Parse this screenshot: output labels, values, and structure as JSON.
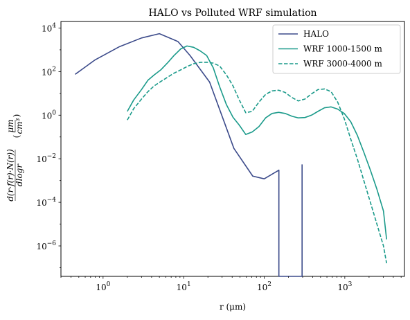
{
  "chart_data": {
    "type": "line",
    "title": "HALO vs Polluted WRF simulation",
    "xlabel": "r (μm)",
    "ylabel_parts": {
      "frac_num": "d(r·f(r)·N(r))",
      "frac_den": "dlogr",
      "unit_num": "μm",
      "unit_den": "cm³"
    },
    "xscale": "log",
    "yscale": "log",
    "xlim": [
      0.3,
      5500
    ],
    "ylim": [
      4e-08,
      20000
    ],
    "x_tick_labels": [
      {
        "value": 1,
        "base": "10",
        "exp": "0"
      },
      {
        "value": 10,
        "base": "10",
        "exp": "1"
      },
      {
        "value": 100,
        "base": "10",
        "exp": "2"
      },
      {
        "value": 1000,
        "base": "10",
        "exp": "3"
      }
    ],
    "y_tick_labels": [
      {
        "value": 1e-06,
        "base": "10",
        "exp": "−6"
      },
      {
        "value": 0.0001,
        "base": "10",
        "exp": "−4"
      },
      {
        "value": 0.01,
        "base": "10",
        "exp": "−2"
      },
      {
        "value": 1,
        "base": "10",
        "exp": "0"
      },
      {
        "value": 100,
        "base": "10",
        "exp": "2"
      },
      {
        "value": 10000,
        "base": "10",
        "exp": "4"
      }
    ],
    "legend_position": "upper right",
    "series": [
      {
        "name": "HALO",
        "color": "#3b4a8a",
        "dash": "solid",
        "x": [
          0.45,
          0.8,
          1.6,
          3.0,
          5.0,
          8.5,
          12,
          21,
          42,
          72,
          100,
          152,
          152,
          295,
          295
        ],
        "y": [
          75,
          350,
          1400,
          3500,
          5500,
          2400,
          550,
          33,
          0.03,
          0.0016,
          0.0012,
          0.003,
          4e-08,
          4e-08,
          0.0055
        ]
      },
      {
        "name": "WRF 1000-1500 m",
        "color": "#1a9a8a",
        "dash": "solid",
        "x": [
          2.0,
          2.4,
          3.0,
          3.6,
          4.3,
          5.2,
          6.3,
          7.6,
          9.2,
          11,
          13.3,
          16,
          19.3,
          23.3,
          28,
          34,
          41,
          49,
          59,
          71,
          86,
          104,
          125,
          151,
          182,
          220,
          265,
          320,
          386,
          465,
          561,
          676,
          815,
          983,
          1185,
          1429,
          1722,
          2077,
          2503,
          3018,
          3300
        ],
        "y": [
          1.5,
          5,
          15,
          40,
          70,
          120,
          250,
          550,
          1100,
          1500,
          1300,
          900,
          550,
          150,
          20,
          3.0,
          0.8,
          0.35,
          0.13,
          0.17,
          0.3,
          0.75,
          1.2,
          1.35,
          1.2,
          0.9,
          0.75,
          0.78,
          1.0,
          1.5,
          2.2,
          2.4,
          1.9,
          1.2,
          0.5,
          0.12,
          0.02,
          0.003,
          0.0004,
          4e-05,
          2e-06
        ]
      },
      {
        "name": "WRF 3000-4000 m",
        "color": "#1a9a8a",
        "dash": "dashed",
        "x": [
          2.0,
          2.4,
          3.0,
          3.6,
          4.3,
          5.2,
          6.3,
          7.6,
          9.2,
          11,
          13.3,
          16,
          19.3,
          23.3,
          28,
          34,
          41,
          49,
          59,
          71,
          86,
          104,
          125,
          151,
          182,
          220,
          265,
          320,
          386,
          465,
          561,
          676,
          815,
          983,
          1185,
          1429,
          1722,
          2077,
          2503,
          3018,
          3300
        ],
        "y": [
          0.6,
          2.0,
          5.5,
          12,
          22,
          35,
          55,
          85,
          120,
          170,
          230,
          265,
          270,
          245,
          180,
          70,
          22,
          5,
          1.3,
          1.5,
          4.0,
          9,
          13,
          14,
          11,
          6.5,
          4.5,
          5.5,
          9.5,
          15,
          16,
          12,
          4,
          0.7,
          0.08,
          0.01,
          0.001,
          0.0001,
          1e-05,
          1e-06,
          1.6e-07
        ]
      }
    ]
  }
}
